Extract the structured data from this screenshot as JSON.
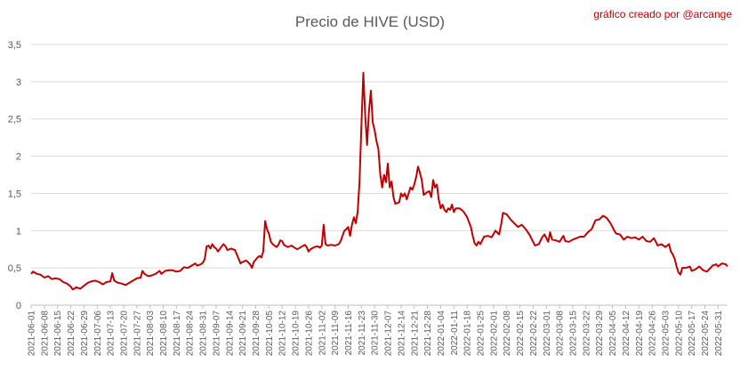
{
  "chart_data": {
    "type": "line",
    "title": "Precio de HIVE (USD)",
    "credit": "gráfico creado por @arcange",
    "xlabel": "",
    "ylabel": "",
    "ylim": [
      0,
      3.5
    ],
    "yticks": [
      "0",
      "0,5",
      "1",
      "1,5",
      "2",
      "2,5",
      "3",
      "3,5"
    ],
    "ytick_values": [
      0,
      0.5,
      1,
      1.5,
      2,
      2.5,
      3,
      3.5
    ],
    "grid": "horizontal",
    "legend": "none",
    "x_start": "2021-06-01",
    "x_end": "2022-06-05",
    "xticks": [
      "2021-06-01",
      "2021-06-08",
      "2021-06-15",
      "2021-06-22",
      "2021-06-29",
      "2021-07-06",
      "2021-07-13",
      "2021-07-20",
      "2021-07-27",
      "2021-08-03",
      "2021-08-10",
      "2021-08-17",
      "2021-08-24",
      "2021-08-31",
      "2021-09-07",
      "2021-09-14",
      "2021-09-21",
      "2021-09-28",
      "2021-10-05",
      "2021-10-12",
      "2021-10-19",
      "2021-10-26",
      "2021-11-02",
      "2021-11-09",
      "2021-11-16",
      "2021-11-23",
      "2021-11-30",
      "2021-12-07",
      "2021-12-14",
      "2021-12-21",
      "2021-12-28",
      "2022-01-04",
      "2022-01-11",
      "2022-01-18",
      "2022-01-25",
      "2022-02-01",
      "2022-02-08",
      "2022-02-15",
      "2022-02-22",
      "2022-03-01",
      "2022-03-08",
      "2022-03-15",
      "2022-03-22",
      "2022-03-29",
      "2022-04-05",
      "2022-04-12",
      "2022-04-19",
      "2022-04-26",
      "2022-05-03",
      "2022-05-10",
      "2022-05-17",
      "2022-05-24",
      "2022-05-31"
    ],
    "series": [
      {
        "color": "#c00000",
        "points": [
          [
            "2021-06-01",
            0.42
          ],
          [
            "2021-06-02",
            0.45
          ],
          [
            "2021-06-04",
            0.42
          ],
          [
            "2021-06-06",
            0.41
          ],
          [
            "2021-06-08",
            0.37
          ],
          [
            "2021-06-10",
            0.39
          ],
          [
            "2021-06-12",
            0.35
          ],
          [
            "2021-06-14",
            0.36
          ],
          [
            "2021-06-16",
            0.35
          ],
          [
            "2021-06-18",
            0.31
          ],
          [
            "2021-06-20",
            0.29
          ],
          [
            "2021-06-22",
            0.25
          ],
          [
            "2021-06-23",
            0.21
          ],
          [
            "2021-06-25",
            0.24
          ],
          [
            "2021-06-27",
            0.22
          ],
          [
            "2021-06-29",
            0.26
          ],
          [
            "2021-07-01",
            0.3
          ],
          [
            "2021-07-03",
            0.32
          ],
          [
            "2021-07-05",
            0.33
          ],
          [
            "2021-07-07",
            0.31
          ],
          [
            "2021-07-09",
            0.28
          ],
          [
            "2021-07-11",
            0.31
          ],
          [
            "2021-07-13",
            0.32
          ],
          [
            "2021-07-14",
            0.43
          ],
          [
            "2021-07-15",
            0.33
          ],
          [
            "2021-07-17",
            0.3
          ],
          [
            "2021-07-19",
            0.29
          ],
          [
            "2021-07-21",
            0.27
          ],
          [
            "2021-07-23",
            0.3
          ],
          [
            "2021-07-25",
            0.33
          ],
          [
            "2021-07-27",
            0.36
          ],
          [
            "2021-07-29",
            0.37
          ],
          [
            "2021-07-30",
            0.46
          ],
          [
            "2021-07-31",
            0.42
          ],
          [
            "2021-08-02",
            0.39
          ],
          [
            "2021-08-04",
            0.4
          ],
          [
            "2021-08-06",
            0.42
          ],
          [
            "2021-08-08",
            0.46
          ],
          [
            "2021-08-09",
            0.42
          ],
          [
            "2021-08-11",
            0.46
          ],
          [
            "2021-08-13",
            0.47
          ],
          [
            "2021-08-15",
            0.47
          ],
          [
            "2021-08-17",
            0.45
          ],
          [
            "2021-08-19",
            0.46
          ],
          [
            "2021-08-21",
            0.51
          ],
          [
            "2021-08-23",
            0.5
          ],
          [
            "2021-08-25",
            0.53
          ],
          [
            "2021-08-27",
            0.56
          ],
          [
            "2021-08-28",
            0.53
          ],
          [
            "2021-08-30",
            0.55
          ],
          [
            "2021-08-31",
            0.57
          ],
          [
            "2021-09-01",
            0.62
          ],
          [
            "2021-09-02",
            0.79
          ],
          [
            "2021-09-03",
            0.8
          ],
          [
            "2021-09-04",
            0.76
          ],
          [
            "2021-09-05",
            0.82
          ],
          [
            "2021-09-06",
            0.78
          ],
          [
            "2021-09-07",
            0.76
          ],
          [
            "2021-09-08",
            0.72
          ],
          [
            "2021-09-10",
            0.79
          ],
          [
            "2021-09-11",
            0.82
          ],
          [
            "2021-09-12",
            0.79
          ],
          [
            "2021-09-13",
            0.74
          ],
          [
            "2021-09-15",
            0.76
          ],
          [
            "2021-09-17",
            0.74
          ],
          [
            "2021-09-18",
            0.68
          ],
          [
            "2021-09-19",
            0.62
          ],
          [
            "2021-09-20",
            0.56
          ],
          [
            "2021-09-21",
            0.58
          ],
          [
            "2021-09-23",
            0.6
          ],
          [
            "2021-09-25",
            0.55
          ],
          [
            "2021-09-26",
            0.5
          ],
          [
            "2021-09-27",
            0.58
          ],
          [
            "2021-09-28",
            0.61
          ],
          [
            "2021-09-29",
            0.64
          ],
          [
            "2021-09-30",
            0.66
          ],
          [
            "2021-10-01",
            0.64
          ],
          [
            "2021-10-02",
            0.72
          ],
          [
            "2021-10-03",
            1.13
          ],
          [
            "2021-10-04",
            1.02
          ],
          [
            "2021-10-05",
            0.96
          ],
          [
            "2021-10-06",
            0.85
          ],
          [
            "2021-10-07",
            0.82
          ],
          [
            "2021-10-09",
            0.78
          ],
          [
            "2021-10-10",
            0.81
          ],
          [
            "2021-10-11",
            0.87
          ],
          [
            "2021-10-12",
            0.86
          ],
          [
            "2021-10-13",
            0.81
          ],
          [
            "2021-10-15",
            0.78
          ],
          [
            "2021-10-17",
            0.8
          ],
          [
            "2021-10-18",
            0.78
          ],
          [
            "2021-10-20",
            0.75
          ],
          [
            "2021-10-22",
            0.78
          ],
          [
            "2021-10-24",
            0.81
          ],
          [
            "2021-10-25",
            0.78
          ],
          [
            "2021-10-26",
            0.72
          ],
          [
            "2021-10-27",
            0.75
          ],
          [
            "2021-10-29",
            0.78
          ],
          [
            "2021-10-31",
            0.79
          ],
          [
            "2021-11-01",
            0.77
          ],
          [
            "2021-11-02",
            0.8
          ],
          [
            "2021-11-03",
            1.08
          ],
          [
            "2021-11-04",
            0.82
          ],
          [
            "2021-11-05",
            0.8
          ],
          [
            "2021-11-07",
            0.81
          ],
          [
            "2021-11-09",
            0.8
          ],
          [
            "2021-11-11",
            0.82
          ],
          [
            "2021-11-12",
            0.86
          ],
          [
            "2021-11-13",
            0.93
          ],
          [
            "2021-11-14",
            1.0
          ],
          [
            "2021-11-15",
            1.02
          ],
          [
            "2021-11-16",
            1.05
          ],
          [
            "2021-11-17",
            0.93
          ],
          [
            "2021-11-18",
            1.08
          ],
          [
            "2021-11-19",
            1.18
          ],
          [
            "2021-11-20",
            1.1
          ],
          [
            "2021-11-21",
            1.25
          ],
          [
            "2021-11-22",
            1.65
          ],
          [
            "2021-11-23",
            2.4
          ],
          [
            "2021-11-24",
            3.12
          ],
          [
            "2021-11-25",
            2.55
          ],
          [
            "2021-11-26",
            2.15
          ],
          [
            "2021-11-27",
            2.6
          ],
          [
            "2021-11-28",
            2.88
          ],
          [
            "2021-11-29",
            2.45
          ],
          [
            "2021-11-30",
            2.35
          ],
          [
            "2021-12-01",
            2.2
          ],
          [
            "2021-12-02",
            2.1
          ],
          [
            "2021-12-03",
            1.75
          ],
          [
            "2021-12-04",
            1.58
          ],
          [
            "2021-12-05",
            1.75
          ],
          [
            "2021-12-06",
            1.65
          ],
          [
            "2021-12-07",
            1.9
          ],
          [
            "2021-12-08",
            1.58
          ],
          [
            "2021-12-09",
            1.66
          ],
          [
            "2021-12-10",
            1.45
          ],
          [
            "2021-12-11",
            1.36
          ],
          [
            "2021-12-13",
            1.38
          ],
          [
            "2021-12-14",
            1.5
          ],
          [
            "2021-12-15",
            1.46
          ],
          [
            "2021-12-16",
            1.5
          ],
          [
            "2021-12-17",
            1.42
          ],
          [
            "2021-12-18",
            1.5
          ],
          [
            "2021-12-19",
            1.58
          ],
          [
            "2021-12-20",
            1.55
          ],
          [
            "2021-12-21",
            1.62
          ],
          [
            "2021-12-22",
            1.72
          ],
          [
            "2021-12-23",
            1.86
          ],
          [
            "2021-12-24",
            1.78
          ],
          [
            "2021-12-25",
            1.68
          ],
          [
            "2021-12-26",
            1.48
          ],
          [
            "2021-12-27",
            1.5
          ],
          [
            "2021-12-28",
            1.52
          ],
          [
            "2021-12-29",
            1.53
          ],
          [
            "2021-12-30",
            1.45
          ],
          [
            "2021-12-31",
            1.68
          ],
          [
            "2022-01-01",
            1.58
          ],
          [
            "2022-01-02",
            1.62
          ],
          [
            "2022-01-03",
            1.42
          ],
          [
            "2022-01-04",
            1.3
          ],
          [
            "2022-01-05",
            1.35
          ],
          [
            "2022-01-06",
            1.28
          ],
          [
            "2022-01-07",
            1.25
          ],
          [
            "2022-01-08",
            1.3
          ],
          [
            "2022-01-09",
            1.28
          ],
          [
            "2022-01-10",
            1.35
          ],
          [
            "2022-01-11",
            1.25
          ],
          [
            "2022-01-12",
            1.3
          ],
          [
            "2022-01-14",
            1.3
          ],
          [
            "2022-01-16",
            1.26
          ],
          [
            "2022-01-18",
            1.18
          ],
          [
            "2022-01-20",
            1.05
          ],
          [
            "2022-01-21",
            0.93
          ],
          [
            "2022-01-22",
            0.83
          ],
          [
            "2022-01-23",
            0.8
          ],
          [
            "2022-01-24",
            0.85
          ],
          [
            "2022-01-25",
            0.82
          ],
          [
            "2022-01-27",
            0.92
          ],
          [
            "2022-01-29",
            0.93
          ],
          [
            "2022-01-31",
            0.91
          ],
          [
            "2022-02-02",
            1.0
          ],
          [
            "2022-02-04",
            0.95
          ],
          [
            "2022-02-05",
            1.08
          ],
          [
            "2022-02-06",
            1.24
          ],
          [
            "2022-02-08",
            1.22
          ],
          [
            "2022-02-10",
            1.15
          ],
          [
            "2022-02-12",
            1.1
          ],
          [
            "2022-02-14",
            1.05
          ],
          [
            "2022-02-16",
            1.08
          ],
          [
            "2022-02-18",
            1.02
          ],
          [
            "2022-02-20",
            0.95
          ],
          [
            "2022-02-22",
            0.85
          ],
          [
            "2022-02-23",
            0.8
          ],
          [
            "2022-02-25",
            0.82
          ],
          [
            "2022-02-27",
            0.92
          ],
          [
            "2022-02-28",
            0.95
          ],
          [
            "2022-03-02",
            0.85
          ],
          [
            "2022-03-03",
            0.98
          ],
          [
            "2022-03-04",
            0.88
          ],
          [
            "2022-03-06",
            0.87
          ],
          [
            "2022-03-08",
            0.85
          ],
          [
            "2022-03-10",
            0.93
          ],
          [
            "2022-03-11",
            0.86
          ],
          [
            "2022-03-13",
            0.85
          ],
          [
            "2022-03-15",
            0.88
          ],
          [
            "2022-03-17",
            0.9
          ],
          [
            "2022-03-19",
            0.92
          ],
          [
            "2022-03-21",
            0.92
          ],
          [
            "2022-03-23",
            0.98
          ],
          [
            "2022-03-25",
            1.02
          ],
          [
            "2022-03-27",
            1.14
          ],
          [
            "2022-03-29",
            1.15
          ],
          [
            "2022-03-31",
            1.2
          ],
          [
            "2022-04-02",
            1.17
          ],
          [
            "2022-04-04",
            1.1
          ],
          [
            "2022-04-06",
            1.0
          ],
          [
            "2022-04-07",
            0.96
          ],
          [
            "2022-04-09",
            0.95
          ],
          [
            "2022-04-11",
            0.88
          ],
          [
            "2022-04-13",
            0.92
          ],
          [
            "2022-04-15",
            0.9
          ],
          [
            "2022-04-17",
            0.91
          ],
          [
            "2022-04-19",
            0.88
          ],
          [
            "2022-04-21",
            0.92
          ],
          [
            "2022-04-23",
            0.86
          ],
          [
            "2022-04-25",
            0.85
          ],
          [
            "2022-04-27",
            0.9
          ],
          [
            "2022-04-29",
            0.8
          ],
          [
            "2022-05-01",
            0.82
          ],
          [
            "2022-05-03",
            0.78
          ],
          [
            "2022-05-05",
            0.82
          ],
          [
            "2022-05-06",
            0.72
          ],
          [
            "2022-05-07",
            0.68
          ],
          [
            "2022-05-08",
            0.62
          ],
          [
            "2022-05-09",
            0.52
          ],
          [
            "2022-05-10",
            0.44
          ],
          [
            "2022-05-11",
            0.41
          ],
          [
            "2022-05-12",
            0.5
          ],
          [
            "2022-05-14",
            0.5
          ],
          [
            "2022-05-16",
            0.52
          ],
          [
            "2022-05-17",
            0.46
          ],
          [
            "2022-05-19",
            0.48
          ],
          [
            "2022-05-21",
            0.52
          ],
          [
            "2022-05-23",
            0.47
          ],
          [
            "2022-05-25",
            0.45
          ],
          [
            "2022-05-27",
            0.5
          ],
          [
            "2022-05-28",
            0.53
          ],
          [
            "2022-05-30",
            0.55
          ],
          [
            "2022-05-31",
            0.52
          ],
          [
            "2022-06-02",
            0.56
          ],
          [
            "2022-06-04",
            0.55
          ],
          [
            "2022-06-05",
            0.52
          ]
        ]
      }
    ]
  }
}
